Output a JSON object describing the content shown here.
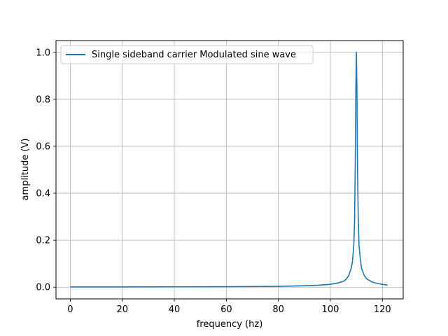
{
  "chart_data": {
    "type": "line",
    "title": "",
    "xlabel": "frequency (hz)",
    "ylabel": "amplitude (V)",
    "xlim": [
      -5.5,
      128
    ],
    "ylim": [
      -0.05,
      1.05
    ],
    "xticks": [
      0,
      20,
      40,
      60,
      80,
      100,
      120
    ],
    "yticks": [
      0.0,
      0.2,
      0.4,
      0.6,
      0.8,
      1.0
    ],
    "xtick_labels": [
      "0",
      "20",
      "40",
      "60",
      "80",
      "100",
      "120"
    ],
    "ytick_labels": [
      "0.0",
      "0.2",
      "0.4",
      "0.6",
      "0.8",
      "1.0"
    ],
    "grid": true,
    "legend_position": "top-left",
    "series": [
      {
        "name": "Single sideband carrier Modulated sine wave",
        "color": "#1f77b4",
        "x": [
          0,
          10,
          20,
          30,
          40,
          50,
          60,
          70,
          80,
          90,
          95,
          100,
          103,
          105,
          106,
          107,
          108,
          108.5,
          109,
          109.3,
          109.6,
          109.8,
          110,
          110.2,
          110.4,
          110.7,
          111,
          111.5,
          112,
          113,
          114,
          116,
          118,
          120,
          122
        ],
        "y": [
          0.001,
          0.001,
          0.001,
          0.0012,
          0.0014,
          0.0017,
          0.002,
          0.0026,
          0.0036,
          0.006,
          0.008,
          0.012,
          0.018,
          0.025,
          0.033,
          0.048,
          0.08,
          0.11,
          0.18,
          0.28,
          0.55,
          0.85,
          1.0,
          0.85,
          0.55,
          0.3,
          0.18,
          0.12,
          0.08,
          0.05,
          0.035,
          0.022,
          0.016,
          0.012,
          0.009
        ]
      }
    ]
  }
}
